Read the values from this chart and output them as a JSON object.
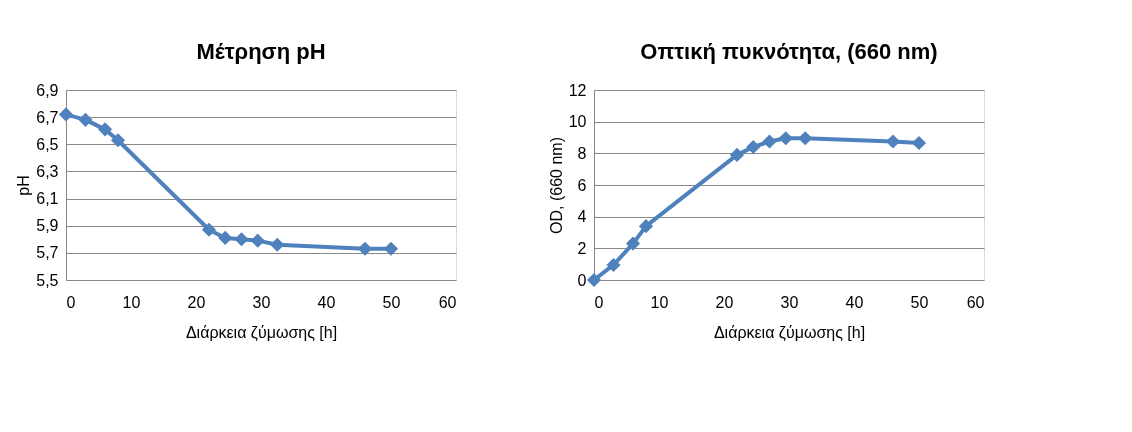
{
  "chart_data": [
    {
      "type": "line",
      "title": "Μέτρηση pH",
      "xlabel": "Διάρκεια ζύμωσης [h]",
      "ylabel": "pH",
      "x": [
        0,
        3,
        6,
        8,
        22,
        24.5,
        27,
        29.5,
        32.5,
        46,
        50
      ],
      "series": [
        {
          "color": "#4f81bd",
          "values": [
            6.72,
            6.68,
            6.61,
            6.53,
            5.87,
            5.81,
            5.8,
            5.79,
            5.76,
            5.73,
            5.73
          ]
        }
      ],
      "xlim": [
        0,
        60
      ],
      "xticks": [
        0,
        10,
        20,
        30,
        40,
        50,
        60
      ],
      "ylim": [
        5.5,
        6.9
      ],
      "yticks": [
        {
          "value": 5.5,
          "label": "5,5"
        },
        {
          "value": 5.7,
          "label": "5,7"
        },
        {
          "value": 5.9,
          "label": "5,9"
        },
        {
          "value": 6.1,
          "label": "6,1"
        },
        {
          "value": 6.3,
          "label": "6,3"
        },
        {
          "value": 6.5,
          "label": "6,5"
        },
        {
          "value": 6.7,
          "label": "6,7"
        },
        {
          "value": 6.9,
          "label": "6,9"
        }
      ],
      "grid": "y",
      "marker": "diamond",
      "line_style": "solid"
    },
    {
      "type": "line",
      "title": "Οπτική πυκνότητα, (660 nm)",
      "xlabel": "Διάρκεια ζύμωσης [h]",
      "ylabel": "OD, (660 nm)",
      "x": [
        0,
        3,
        6,
        8,
        22,
        24.5,
        27,
        29.5,
        32.5,
        46,
        50
      ],
      "series": [
        {
          "color": "#4f81bd",
          "values": [
            0,
            0.95,
            2.3,
            3.4,
            7.9,
            8.4,
            8.75,
            8.95,
            8.95,
            8.75,
            8.65
          ]
        }
      ],
      "xlim": [
        0,
        60
      ],
      "xticks": [
        0,
        10,
        20,
        30,
        40,
        50,
        60
      ],
      "ylim": [
        0,
        12
      ],
      "yticks": [
        0,
        2,
        4,
        6,
        8,
        10,
        12
      ],
      "grid": "y",
      "marker": "diamond",
      "line_style": "solid"
    }
  ]
}
